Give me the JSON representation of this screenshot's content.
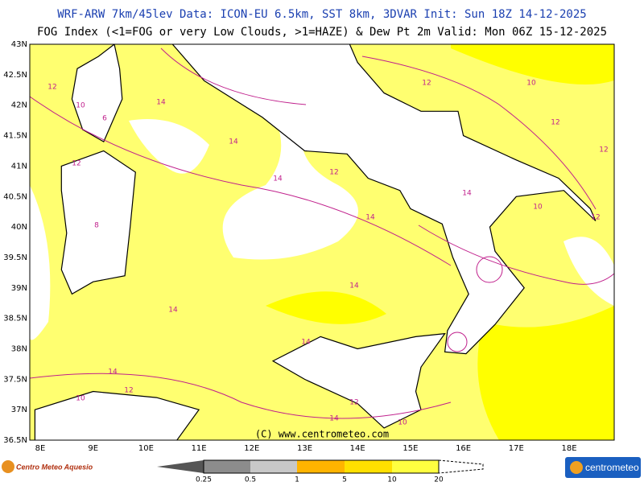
{
  "header": {
    "line1": "WRF-ARW 7km/45lev   Data: ICON-EU 6.5km, SST 8km, 3DVAR   Init: Sun 18Z 14-12-2025",
    "line2": "FOG Index (<1=FOG or very Low Clouds, >1=HAZE) & Dew Pt 2m   Valid: Mon 06Z 15-12-2025"
  },
  "map": {
    "lat_labels": [
      "43N",
      "42.5N",
      "42N",
      "41.5N",
      "41N",
      "40.5N",
      "40N",
      "39.5N",
      "39N",
      "38.5N",
      "38N",
      "37.5N",
      "37N",
      "36.5N"
    ],
    "lon_labels": [
      "8E",
      "9E",
      "10E",
      "11E",
      "12E",
      "13E",
      "14E",
      "15E",
      "16E",
      "17E",
      "18E"
    ],
    "contour_labels": [
      "12",
      "14",
      "10",
      "12",
      "14",
      "14",
      "14",
      "14",
      "12",
      "10",
      "12",
      "14",
      "12",
      "10",
      "8",
      "6",
      "12",
      "14",
      "14",
      "12",
      "10",
      "12",
      "14",
      "14",
      "12",
      "10"
    ],
    "copyright": "(C) www.centrometeo.com"
  },
  "legend": {
    "labels": [
      "0.25",
      "0.5",
      "1",
      "5",
      "10",
      "20"
    ]
  },
  "logos": {
    "left": "Centro Meteo Aquesio",
    "right": "centrometeo"
  }
}
